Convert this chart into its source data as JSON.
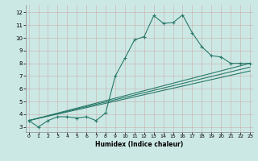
{
  "xlabel": "Humidex (Indice chaleur)",
  "bg_color": "#cce8e4",
  "line_color": "#2a7a6a",
  "grid_major_color": "#b8d8d4",
  "grid_minor_color": "#d4ecec",
  "x_ticks": [
    0,
    1,
    2,
    3,
    4,
    5,
    6,
    7,
    8,
    9,
    10,
    11,
    12,
    13,
    14,
    15,
    16,
    17,
    18,
    19,
    20,
    21,
    22,
    23
  ],
  "y_ticks": [
    3,
    4,
    5,
    6,
    7,
    8,
    9,
    10,
    11,
    12
  ],
  "xlim": [
    -0.3,
    23.3
  ],
  "ylim": [
    2.6,
    12.6
  ],
  "series1_x": [
    0,
    1,
    2,
    3,
    4,
    5,
    6,
    7,
    8,
    9,
    10,
    11,
    12,
    13,
    14,
    15,
    16,
    17,
    18,
    19,
    20,
    21,
    22,
    23
  ],
  "series1_y": [
    3.5,
    3.0,
    3.5,
    3.8,
    3.8,
    3.7,
    3.8,
    3.5,
    4.1,
    7.0,
    8.4,
    9.85,
    10.1,
    11.75,
    11.15,
    11.2,
    11.8,
    10.4,
    9.3,
    8.6,
    8.5,
    8.0,
    8.0,
    8.0
  ],
  "series2_x": [
    0,
    23
  ],
  "series2_y": [
    3.5,
    8.0
  ],
  "series3_x": [
    0,
    23
  ],
  "series3_y": [
    3.5,
    7.7
  ],
  "series4_x": [
    0,
    23
  ],
  "series4_y": [
    3.5,
    7.4
  ]
}
